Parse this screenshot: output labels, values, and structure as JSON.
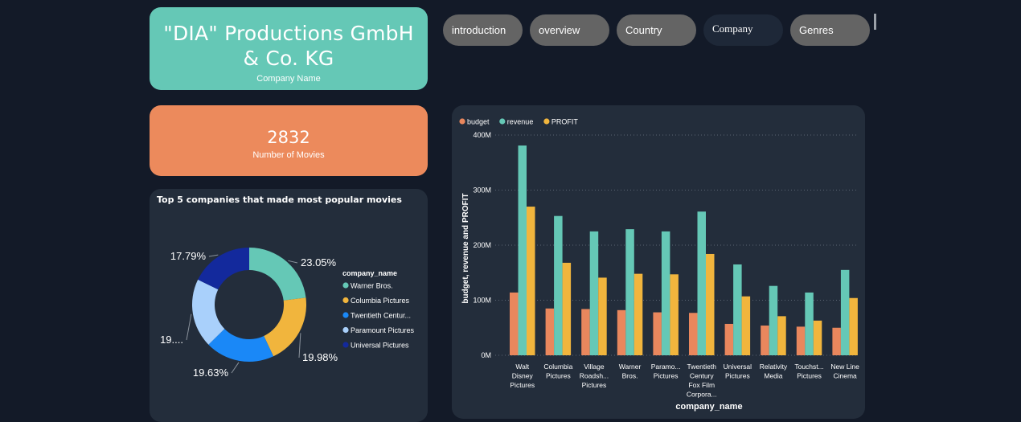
{
  "header": {
    "title": "\"DIA\" Productions GmbH & Co. KG",
    "title_line1": "\"DIA\" Productions GmbH",
    "title_line2": "& Co. KG",
    "subtitle": "Company Name"
  },
  "nav": {
    "tabs": [
      {
        "label": "introduction"
      },
      {
        "label": "overview"
      },
      {
        "label": "Country"
      },
      {
        "label": "Company",
        "active": true
      },
      {
        "label": "Genres"
      }
    ]
  },
  "kpi": {
    "value": "2832",
    "label": "Number of Movies"
  },
  "colors": {
    "budget": "#e9875d",
    "revenue": "#65c8b6",
    "profit": "#f1b53d",
    "background": "#131a28",
    "card": "#232d3b"
  },
  "chart_data": [
    {
      "type": "pie",
      "title": "Top 5 companies that made most popular movies",
      "legend_title": "company_name",
      "legend_labels": [
        "Warner Bros.",
        "Columbia Pictures",
        "Twentieth Centur...",
        "Paramount Pictures",
        "Universal Pictures"
      ],
      "categories": [
        "Warner Bros.",
        "Columbia Pictures",
        "Twentieth Century Fox Film Corporation",
        "Paramount Pictures",
        "Universal Pictures"
      ],
      "values": [
        23.05,
        19.98,
        19.63,
        19.55,
        17.79
      ],
      "value_labels": [
        "23.05%",
        "19.98%",
        "19.63%",
        "19....",
        "17.79%"
      ],
      "colors": [
        "#65c8b6",
        "#f1b53d",
        "#1a88f7",
        "#a9d0fb",
        "#13299c"
      ],
      "legend_position": "right",
      "donut": true
    },
    {
      "type": "bar",
      "xlabel": "company_name",
      "ylabel": "budget, revenue and PROFIT",
      "categories": [
        "Walt Disney Pictures",
        "Columbia Pictures",
        "Village Roadshow Pictures",
        "Warner Bros.",
        "Paramount Pictures",
        "Twentieth Century Fox Film Corporation",
        "Universal Pictures",
        "Relativity Media",
        "Touchstone Pictures",
        "New Line Cinema"
      ],
      "category_labels": [
        [
          "Walt",
          "Disney",
          "Pictures"
        ],
        [
          "Columbia",
          "Pictures"
        ],
        [
          "Village",
          "Roadsh...",
          "Pictures"
        ],
        [
          "Warner",
          "Bros."
        ],
        [
          "Paramo...",
          "Pictures"
        ],
        [
          "Twentieth",
          "Century",
          "Fox Film",
          "Corpora..."
        ],
        [
          "Universal",
          "Pictures"
        ],
        [
          "Relativity",
          "Media"
        ],
        [
          "Touchst...",
          "Pictures"
        ],
        [
          "New Line",
          "Cinema"
        ]
      ],
      "series": [
        {
          "name": "budget",
          "values": [
            114,
            85,
            84,
            82,
            78,
            77,
            57,
            54,
            52,
            50
          ]
        },
        {
          "name": "revenue",
          "values": [
            381,
            253,
            225,
            229,
            225,
            261,
            165,
            126,
            114,
            155
          ]
        },
        {
          "name": "PROFIT",
          "values": [
            270,
            168,
            141,
            148,
            147,
            184,
            107,
            71,
            63,
            104
          ]
        }
      ],
      "unit": "M",
      "ylim": [
        0,
        400
      ],
      "yticks": [
        "0M",
        "100M",
        "200M",
        "300M",
        "400M"
      ],
      "legend_position": "top-left",
      "grid": true
    }
  ]
}
